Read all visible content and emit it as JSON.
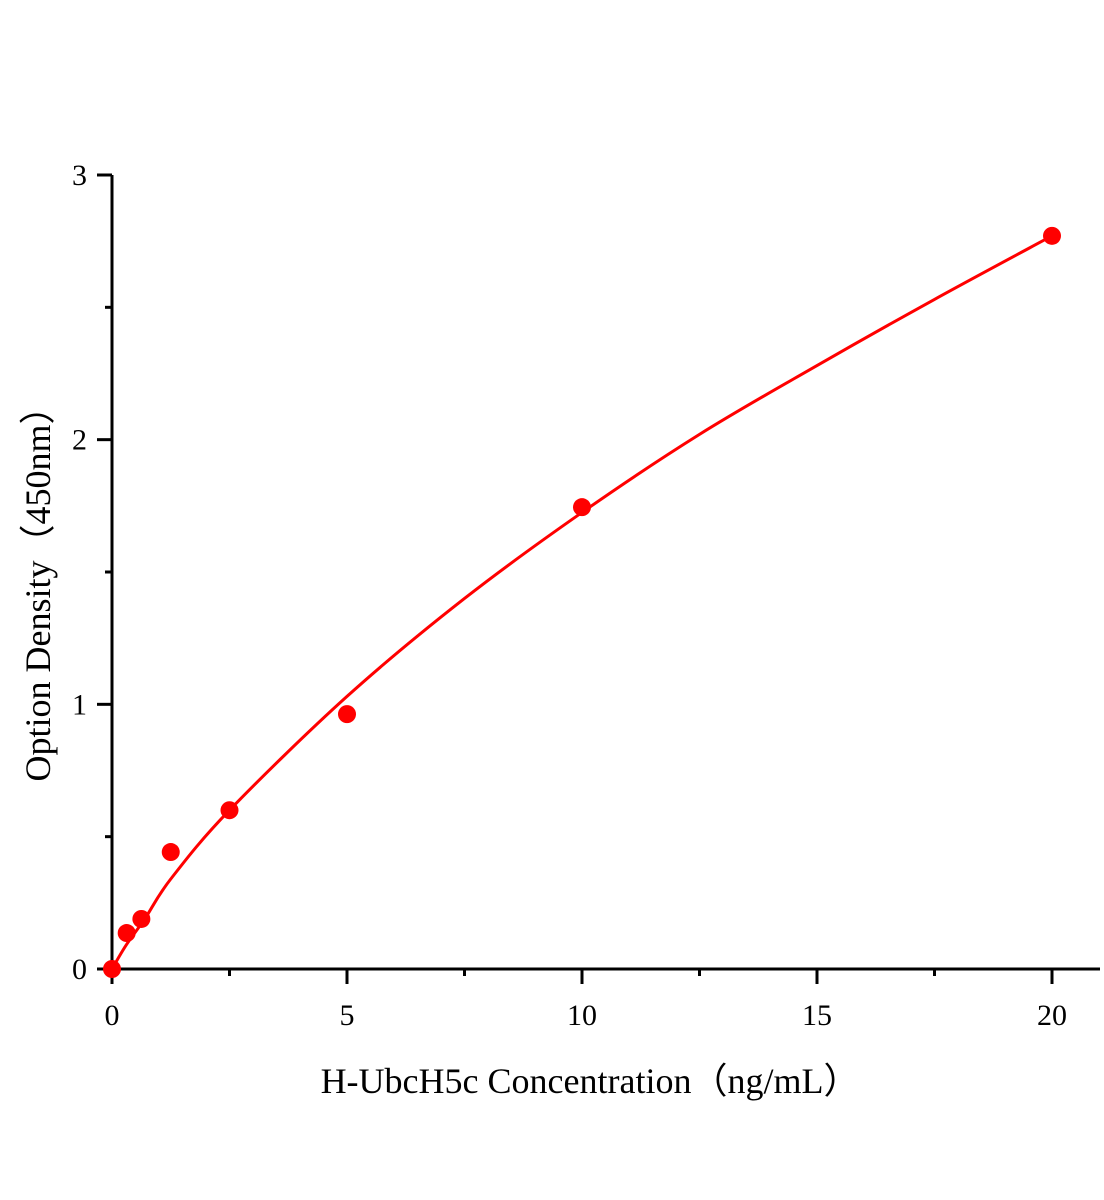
{
  "chart_data": {
    "type": "scatter",
    "title": "",
    "xlabel": "H-UbcH5c Concentration（ng/mL）",
    "ylabel": "Option Density（450nm）",
    "xlim": [
      0,
      21
    ],
    "ylim": [
      0,
      3
    ],
    "x_ticks": [
      0,
      5,
      10,
      15,
      20
    ],
    "y_ticks": [
      0,
      1,
      2,
      3
    ],
    "x_minor_step": 2.5,
    "y_minor_step": 0.5,
    "grid": false,
    "legend": "none",
    "series": [
      {
        "color": "#ff0000",
        "points": [
          {
            "x": 0,
            "y": 0
          },
          {
            "x": 0.3125,
            "y": 0.136
          },
          {
            "x": 0.625,
            "y": 0.189
          },
          {
            "x": 1.25,
            "y": 0.442
          },
          {
            "x": 2.5,
            "y": 0.6
          },
          {
            "x": 5,
            "y": 0.963
          },
          {
            "x": 10,
            "y": 1.745
          },
          {
            "x": 20,
            "y": 2.77
          }
        ],
        "fit_curve": [
          {
            "x": 0,
            "y": 0
          },
          {
            "x": 0.3,
            "y": 0.09
          },
          {
            "x": 0.7,
            "y": 0.19
          },
          {
            "x": 1.25,
            "y": 0.34
          },
          {
            "x": 2.5,
            "y": 0.6
          },
          {
            "x": 5,
            "y": 1.03
          },
          {
            "x": 7.5,
            "y": 1.4
          },
          {
            "x": 10,
            "y": 1.725
          },
          {
            "x": 12.5,
            "y": 2.02
          },
          {
            "x": 15,
            "y": 2.28
          },
          {
            "x": 17.5,
            "y": 2.53
          },
          {
            "x": 20,
            "y": 2.77
          }
        ]
      }
    ]
  }
}
